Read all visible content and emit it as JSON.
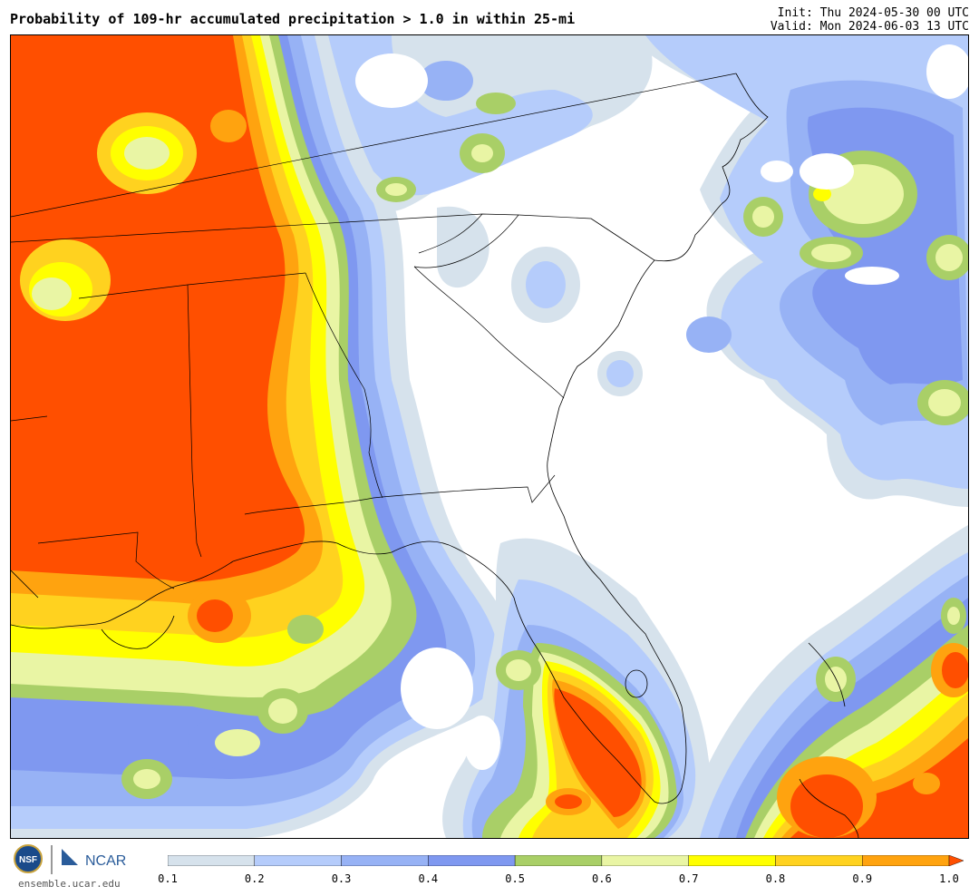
{
  "header": {
    "title": "Probability of 109-hr accumulated precipitation > 1.0 in within 25-mi",
    "init": "Init: Thu 2024-05-30 00 UTC",
    "valid": "Valid: Mon 2024-06-03 13 UTC"
  },
  "footer": {
    "site": "ensemble.ucar.edu",
    "nsf_logo_text": "NSF",
    "ncar_logo_text": "NCAR"
  },
  "colorbar": {
    "levels": [
      "0.1",
      "0.2",
      "0.3",
      "0.4",
      "0.5",
      "0.6",
      "0.7",
      "0.8",
      "0.9",
      "1.0"
    ],
    "colors": [
      "#d6e2ec",
      "#b5ccfb",
      "#97b2f5",
      "#7f98f0",
      "#a9cf67",
      "#e9f5a4",
      "#ffff00",
      "#ffd21f",
      "#ffa30f",
      "#ff4f00"
    ]
  },
  "map_colors": {
    "c1": "#d6e2ec",
    "c2": "#b5ccfb",
    "c3": "#97b2f5",
    "c4": "#7f98f0",
    "c5": "#a9cf67",
    "c6": "#e9f5a4",
    "c7": "#ffff00",
    "c8": "#ffd21f",
    "c9": "#ffa30f",
    "c10": "#ff4f00"
  }
}
